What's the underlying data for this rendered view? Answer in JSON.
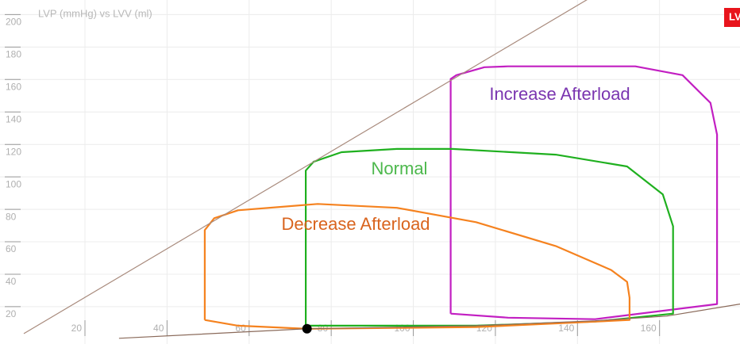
{
  "chart_data": {
    "type": "line",
    "title": "LVP (mmHg) vs LVV (ml)",
    "badge": "LV",
    "xlim": [
      -0.7,
      179.6
    ],
    "ylim": [
      -3,
      209
    ],
    "xticks": [
      20,
      40,
      60,
      80,
      100,
      120,
      140,
      160
    ],
    "yticks": [
      20,
      40,
      60,
      80,
      100,
      120,
      140,
      160,
      180,
      200
    ],
    "grid": true,
    "series": [
      {
        "name": "Increase Afterload",
        "color": "#c21fc2",
        "label_color": "#7a35b0",
        "x": [
          109.1,
          109.1,
          110.5,
          117.3,
          123.1,
          154.1,
          165.6,
          172.4,
          174,
          174,
          144.3,
          123.1,
          109.1
        ],
        "values": [
          15.7,
          160.3,
          162.7,
          167.6,
          168.1,
          168.1,
          162.7,
          145.6,
          126,
          21.6,
          12.3,
          13.2,
          15.7
        ]
      },
      {
        "name": "Normal",
        "color": "#1fb01f",
        "label_color": "#4cb84c",
        "x": [
          73.8,
          73.8,
          75.7,
          82.5,
          96,
          109.5,
          134.7,
          152.1,
          160.8,
          163.3,
          163.3,
          144.3,
          115.3,
          86.3,
          73.8
        ],
        "values": [
          8.3,
          103.9,
          109.3,
          115.2,
          117.2,
          117.2,
          113.7,
          106.4,
          89.2,
          69.6,
          15.7,
          10.8,
          8.3,
          8.3,
          8.3
        ]
      },
      {
        "name": "Decrease Afterload",
        "color": "#f5821f",
        "label_color": "#d9641e",
        "x": [
          49.2,
          49.2,
          51.5,
          57.3,
          76.7,
          96,
          115.3,
          134.7,
          148.2,
          152.1,
          152.7,
          152.7,
          115.3,
          96,
          74.1,
          57.3,
          49.2
        ],
        "values": [
          11.8,
          67.2,
          74.5,
          79.4,
          83.3,
          80.9,
          72.1,
          57.4,
          42.6,
          35.3,
          25.5,
          11.8,
          7.4,
          6.9,
          6.4,
          8.3,
          11.8
        ]
      },
      {
        "color": "#a88a7c",
        "x": [
          5.1,
          142.4
        ],
        "values": [
          3.4,
          209.3
        ]
      },
      {
        "color": "#8a6a5a",
        "x": [
          28.3,
          74.1,
          115.3,
          144.3,
          161.7,
          179.6
        ],
        "values": [
          0.5,
          6.4,
          8.3,
          11.3,
          14.2,
          21.6
        ]
      }
    ],
    "marker": {
      "x": 74.1,
      "y": 6.4,
      "color": "#000000"
    }
  }
}
